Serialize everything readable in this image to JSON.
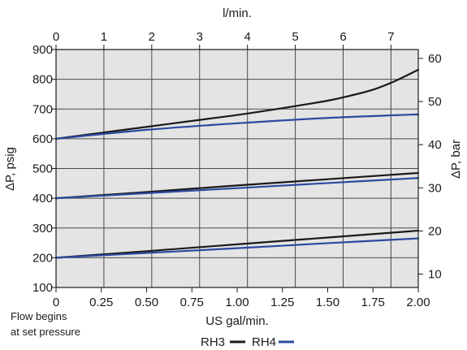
{
  "chart_data": {
    "type": "line",
    "x_bottom": {
      "label": "US gal/min.",
      "range": [
        0,
        2.0
      ],
      "ticks": [
        "0",
        "0.25",
        "0.50",
        "0.75",
        "1.00",
        "1.25",
        "1.50",
        "1.75",
        "2.00"
      ],
      "tick_values": [
        0,
        0.25,
        0.5,
        0.75,
        1.0,
        1.25,
        1.5,
        1.75,
        2.0
      ]
    },
    "x_top": {
      "label": "l/min.",
      "range": [
        0,
        7.57
      ],
      "ticks": [
        "0",
        "1",
        "2",
        "3",
        "4",
        "5",
        "6",
        "7"
      ],
      "tick_values": [
        0,
        1,
        2,
        3,
        4,
        5,
        6,
        7
      ]
    },
    "y_left": {
      "label": "ΔP, psig",
      "range": [
        100,
        900
      ],
      "ticks": [
        "100",
        "200",
        "300",
        "400",
        "500",
        "600",
        "700",
        "800",
        "900"
      ],
      "tick_values": [
        100,
        200,
        300,
        400,
        500,
        600,
        700,
        800,
        900
      ]
    },
    "y_right": {
      "label": "ΔP, bar",
      "range": [
        6.9,
        62.05
      ],
      "ticks": [
        "10",
        "20",
        "30",
        "40",
        "50",
        "60"
      ],
      "tick_values": [
        10,
        20,
        30,
        40,
        50,
        60
      ]
    },
    "grid": true,
    "legend_position": "bottom-center",
    "series": [
      {
        "name": "RH3",
        "group": "600",
        "color": "#1a1a1a",
        "x": [
          0,
          0.25,
          0.5,
          0.75,
          1.0,
          1.25,
          1.5,
          1.625,
          1.75,
          1.875,
          2.0
        ],
        "y": [
          600,
          620,
          640,
          660,
          680,
          703,
          728,
          745,
          765,
          795,
          832
        ]
      },
      {
        "name": "RH4",
        "group": "600",
        "color": "#2a4aa0",
        "x": [
          0,
          0.5,
          1.0,
          1.5,
          2.0
        ],
        "y": [
          600,
          630,
          652,
          670,
          682
        ]
      },
      {
        "name": "RH3",
        "group": "400",
        "color": "#1a1a1a",
        "x": [
          0,
          0.5,
          1.0,
          1.5,
          2.0
        ],
        "y": [
          400,
          421,
          443,
          464,
          485
        ]
      },
      {
        "name": "RH4",
        "group": "400",
        "color": "#2a4aa0",
        "x": [
          0,
          0.5,
          1.0,
          1.5,
          2.0
        ],
        "y": [
          400,
          417,
          434,
          451,
          468
        ]
      },
      {
        "name": "RH3",
        "group": "200",
        "color": "#1a1a1a",
        "x": [
          0,
          0.5,
          1.0,
          1.5,
          2.0
        ],
        "y": [
          200,
          222,
          245,
          268,
          291
        ]
      },
      {
        "name": "RH4",
        "group": "200",
        "color": "#2a4aa0",
        "x": [
          0,
          0.5,
          1.0,
          1.5,
          2.0
        ],
        "y": [
          200,
          216,
          232,
          249,
          265
        ]
      }
    ],
    "note_lines": [
      "Flow begins",
      "at set pressure"
    ],
    "legend": [
      {
        "label": "RH3",
        "color": "#1a1a1a"
      },
      {
        "label": "RH4",
        "color": "#2a4aa0"
      }
    ]
  }
}
